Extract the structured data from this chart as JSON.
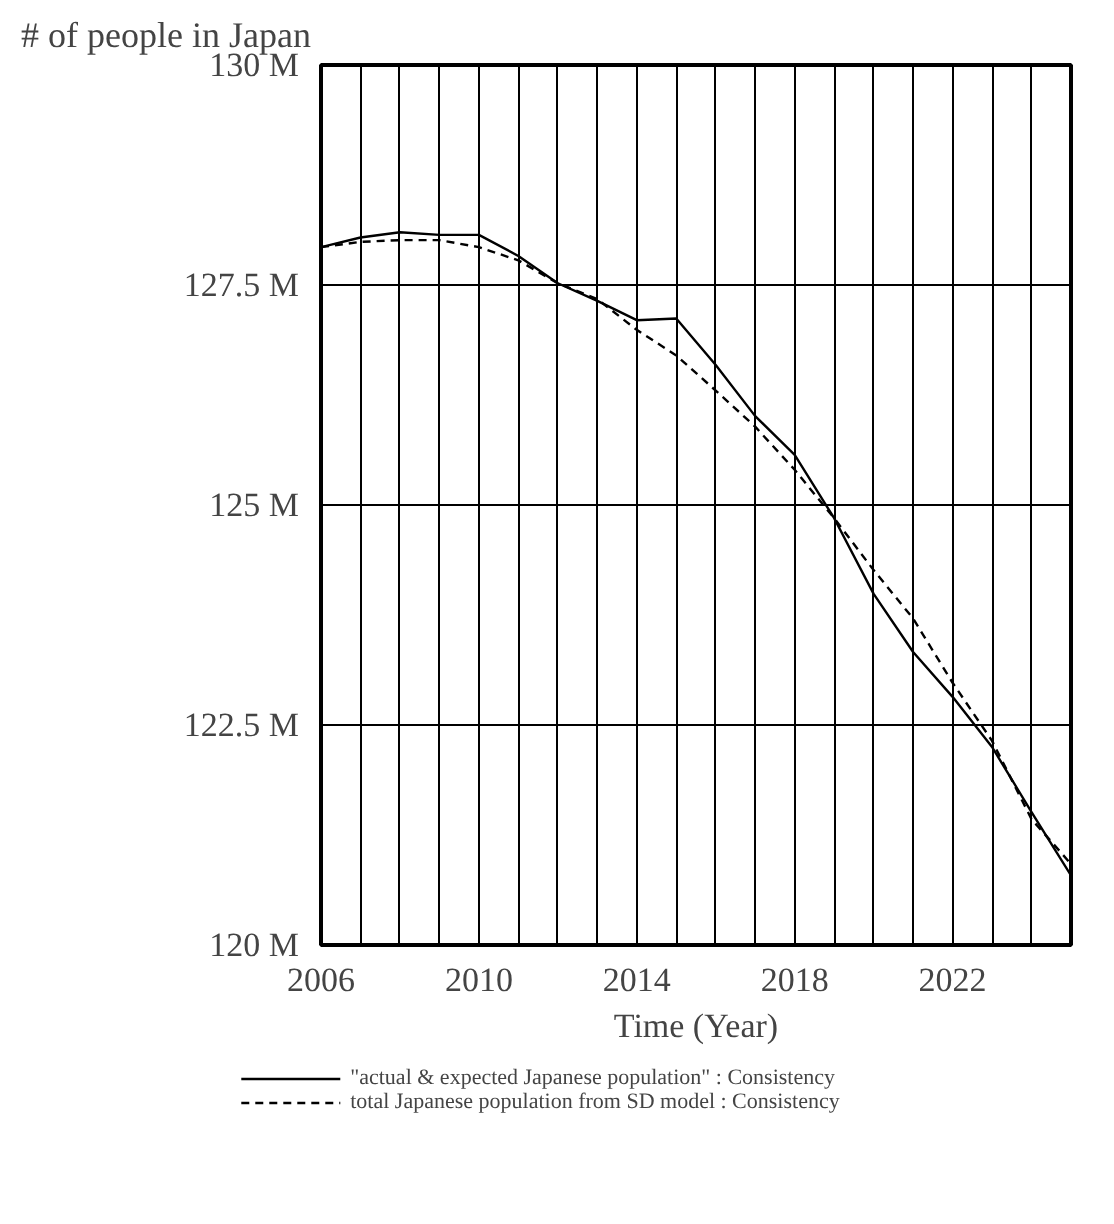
{
  "chart_data": {
    "type": "line",
    "title": "# of people  in Japan",
    "xlabel": "Time (Year)",
    "x": [
      2006,
      2007,
      2008,
      2009,
      2010,
      2011,
      2012,
      2013,
      2014,
      2015,
      2016,
      2017,
      2018,
      2019,
      2020,
      2021,
      2022,
      2023,
      2024,
      2025
    ],
    "series": [
      {
        "name": "\"actual & expected Japanese population\" : Consistency",
        "color": "#000000",
        "line_style": "solid",
        "values": [
          127.93,
          128.04,
          128.1,
          128.07,
          128.07,
          127.83,
          127.52,
          127.32,
          127.1,
          127.12,
          126.59,
          126.01,
          125.57,
          124.85,
          123.99,
          123.33,
          122.82,
          122.25,
          121.51,
          120.79
        ]
      },
      {
        "name": "total Japanese population from SD model : Consistency",
        "color": "#000000",
        "line_style": "dashed",
        "values": [
          127.93,
          127.99,
          128.01,
          128.01,
          127.93,
          127.78,
          127.52,
          127.34,
          126.99,
          126.7,
          126.3,
          125.89,
          125.4,
          124.85,
          124.26,
          123.71,
          122.98,
          122.32,
          121.43,
          120.92
        ]
      }
    ],
    "xlim": [
      2006,
      2025
    ],
    "xticks": [
      2006,
      {
        "value": 2007,
        "label": null
      },
      {
        "value": 2008,
        "label": null
      },
      {
        "value": 2009,
        "label": null
      },
      2010,
      {
        "value": 2011,
        "label": null
      },
      {
        "value": 2012,
        "label": null
      },
      {
        "value": 2013,
        "label": null
      },
      2014,
      {
        "value": 2015,
        "label": null
      },
      {
        "value": 2016,
        "label": null
      },
      {
        "value": 2017,
        "label": null
      },
      2018,
      {
        "value": 2019,
        "label": null
      },
      {
        "value": 2020,
        "label": null
      },
      {
        "value": 2021,
        "label": null
      },
      2022,
      {
        "value": 2023,
        "label": null
      },
      {
        "value": 2024,
        "label": null
      },
      {
        "value": 2025,
        "label": null
      }
    ],
    "ylim": [
      120,
      130
    ],
    "yticks": [
      {
        "value": 120,
        "label": "120 M"
      },
      {
        "value": 122.5,
        "label": "122.5 M"
      },
      {
        "value": 125,
        "label": "125 M"
      },
      {
        "value": 127.5,
        "label": "127.5 M"
      },
      {
        "value": 130,
        "label": "130 M"
      }
    ],
    "grid": true,
    "legend": "bottom",
    "marker": "none"
  }
}
